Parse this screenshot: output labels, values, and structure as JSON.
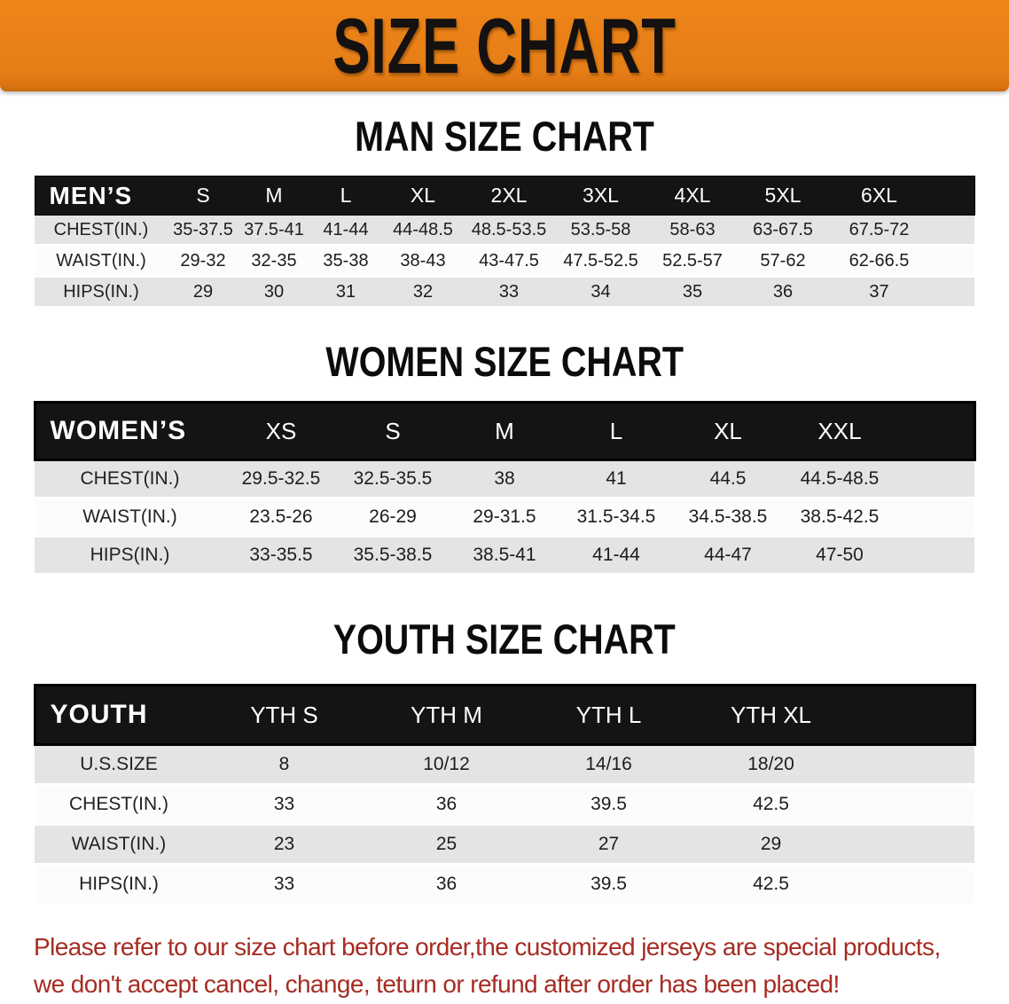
{
  "banner": {
    "title": "SIZE CHART",
    "bg_color": "#e67e17",
    "text_color": "#141110"
  },
  "colors": {
    "banner_orange": "#e67e17",
    "table_header_black": "#141414",
    "row_gray": "#e4e4e4",
    "row_white": "#fcfcfc",
    "note_red": "#a62c23"
  },
  "tables": [
    {
      "title": "MAN SIZE CHART",
      "header": [
        "MEN’S",
        "S",
        "M",
        "L",
        "XL",
        "2XL",
        "3XL",
        "4XL",
        "5XL",
        "6XL"
      ],
      "rows": [
        [
          "CHEST(IN.)",
          "35-37.5",
          "37.5-41",
          "41-44",
          "44-48.5",
          "48.5-53.5",
          "53.5-58",
          "58-63",
          "63-67.5",
          "67.5-72"
        ],
        [
          "WAIST(IN.)",
          "29-32",
          "32-35",
          "35-38",
          "38-43",
          "43-47.5",
          "47.5-52.5",
          "52.5-57",
          "57-62",
          "62-66.5"
        ],
        [
          "HIPS(IN.)",
          "29",
          "30",
          "31",
          "32",
          "33",
          "34",
          "35",
          "36",
          "37"
        ]
      ]
    },
    {
      "title": "WOMEN SIZE CHART",
      "header": [
        "WOMEN’S",
        "XS",
        "S",
        "M",
        "L",
        "XL",
        "XXL"
      ],
      "rows": [
        [
          "CHEST(IN.)",
          "29.5-32.5",
          "32.5-35.5",
          "38",
          "41",
          "44.5",
          "44.5-48.5"
        ],
        [
          "WAIST(IN.)",
          "23.5-26",
          "26-29",
          "29-31.5",
          "31.5-34.5",
          "34.5-38.5",
          "38.5-42.5"
        ],
        [
          "HIPS(IN.)",
          "33-35.5",
          "35.5-38.5",
          "38.5-41",
          "41-44",
          "44-47",
          "47-50"
        ]
      ]
    },
    {
      "title": "YOUTH SIZE CHART",
      "header": [
        "YOUTH",
        "YTH S",
        "YTH M",
        "YTH L",
        "YTH XL"
      ],
      "rows": [
        [
          "U.S.SIZE",
          "8",
          "10/12",
          "14/16",
          "18/20"
        ],
        [
          "CHEST(IN.)",
          "33",
          "36",
          "39.5",
          "42.5"
        ],
        [
          "WAIST(IN.)",
          "23",
          "25",
          "27",
          "29"
        ],
        [
          "HIPS(IN.)",
          "33",
          "36",
          "39.5",
          "42.5"
        ]
      ]
    }
  ],
  "note": {
    "line1": "Please refer to our size chart before order,the customized jerseys are special products,",
    "line2": "we don't accept cancel, change, teturn or refund after order has been placed!"
  }
}
